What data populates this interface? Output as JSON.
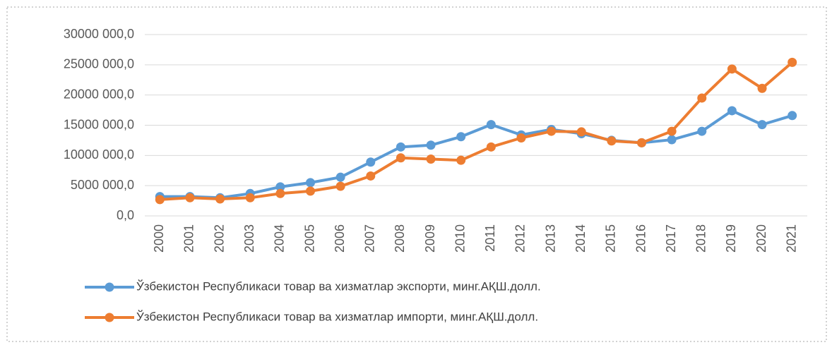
{
  "chart_data": {
    "type": "line",
    "categories": [
      "2000",
      "2001",
      "2002",
      "2003",
      "2004",
      "2005",
      "2006",
      "2007",
      "2008",
      "2009",
      "2010",
      "2011",
      "2012",
      "2013",
      "2014",
      "2015",
      "2016",
      "2017",
      "2018",
      "2019",
      "2020",
      "2021"
    ],
    "series": [
      {
        "name": "Ўзбекистон Республикаси товар ва хизматлар экспорти, минг.АҚШ.долл.",
        "color": "#5b9bd5",
        "values": [
          3200000,
          3200000,
          3000000,
          3700000,
          4800000,
          5500000,
          6400000,
          8900000,
          11400000,
          11700000,
          13100000,
          15100000,
          13400000,
          14300000,
          13600000,
          12500000,
          12100000,
          12600000,
          14000000,
          17400000,
          15100000,
          16600000
        ]
      },
      {
        "name": "Ўзбекистон Республикаси товар ва хизматлар импорти, минг.АҚШ.долл.",
        "color": "#ed7d31",
        "values": [
          2700000,
          3000000,
          2800000,
          3000000,
          3700000,
          4100000,
          4900000,
          6600000,
          9600000,
          9400000,
          9200000,
          11400000,
          12900000,
          14000000,
          13900000,
          12400000,
          12100000,
          14000000,
          19500000,
          24300000,
          21100000,
          25400000
        ]
      }
    ],
    "ylim": [
      0,
      30000000
    ],
    "yticks": [
      {
        "value": 0,
        "label": "0,0"
      },
      {
        "value": 5000000,
        "label": "5000 000,0"
      },
      {
        "value": 10000000,
        "label": "10000 000,0"
      },
      {
        "value": 15000000,
        "label": "15000 000,0"
      },
      {
        "value": 20000000,
        "label": "20000 000,0"
      },
      {
        "value": 25000000,
        "label": "25000 000,0"
      },
      {
        "value": 30000000,
        "label": "30000 000,0"
      }
    ],
    "grid": true
  }
}
